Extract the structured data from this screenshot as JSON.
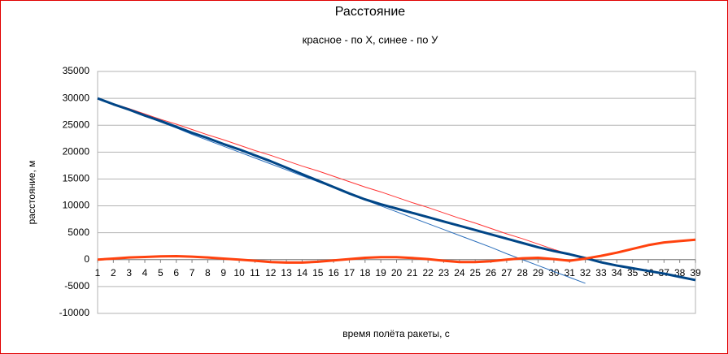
{
  "chart_data": {
    "type": "line",
    "title": "Расстояние",
    "subtitle": "красное - по Х,  синее - по У",
    "x_label": "время полёта ракеты, с",
    "y_label": "расстояние, м",
    "categories": [
      "1",
      "2",
      "3",
      "4",
      "5",
      "6",
      "7",
      "8",
      "9",
      "10",
      "11",
      "12",
      "13",
      "14",
      "15",
      "16",
      "17",
      "18",
      "19",
      "20",
      "21",
      "22",
      "23",
      "24",
      "25",
      "26",
      "27",
      "28",
      "29",
      "30",
      "31",
      "32",
      "33",
      "34",
      "35",
      "36",
      "37",
      "38",
      "39"
    ],
    "series": [
      {
        "color": "#ff3333",
        "line_width": 1,
        "values": [
          30000,
          29000,
          28100,
          27100,
          26100,
          25200,
          24200,
          23200,
          22300,
          21300,
          20300,
          19400,
          18400,
          17400,
          16500,
          15500,
          14500,
          13500,
          12600,
          11600,
          10600,
          9700,
          8700,
          7700,
          6800,
          5800,
          4800,
          3900,
          2900,
          1900,
          1000,
          0,
          null,
          null,
          null,
          null,
          null,
          null,
          null
        ]
      },
      {
        "color": "#2a6ebb",
        "line_width": 1,
        "values": [
          30000,
          28900,
          27800,
          26700,
          25600,
          24500,
          23300,
          22200,
          21100,
          20000,
          18900,
          17800,
          16700,
          15600,
          14500,
          13400,
          12200,
          11100,
          10000,
          8900,
          7800,
          6700,
          5600,
          4500,
          3400,
          2300,
          1100,
          0,
          -1100,
          -2200,
          -3300,
          -4400,
          null,
          null,
          null,
          null,
          null,
          null,
          null
        ]
      },
      {
        "color": "#004586",
        "line_width": 3,
        "values": [
          30000,
          28900,
          27900,
          26800,
          25800,
          24700,
          23600,
          22600,
          21500,
          20500,
          19400,
          18300,
          17100,
          15900,
          14700,
          13500,
          12300,
          11200,
          10300,
          9500,
          8700,
          7900,
          7100,
          6300,
          5500,
          4700,
          3900,
          3100,
          2300,
          1600,
          1000,
          300,
          -500,
          -1100,
          -1600,
          -2100,
          -2600,
          -3200,
          -3800
        ]
      },
      {
        "color": "#ff420e",
        "line_width": 3,
        "values": [
          0,
          200,
          400,
          500,
          600,
          650,
          550,
          400,
          200,
          0,
          -200,
          -450,
          -550,
          -550,
          -400,
          -150,
          100,
          350,
          450,
          450,
          300,
          100,
          -200,
          -450,
          -450,
          -300,
          0,
          250,
          350,
          100,
          -200,
          200,
          700,
          1300,
          2000,
          2700,
          3200,
          3450,
          3700
        ]
      }
    ],
    "ylim": [
      -10000,
      35000
    ],
    "yticks": [
      -10000,
      -5000,
      0,
      5000,
      10000,
      15000,
      20000,
      25000,
      30000,
      35000
    ],
    "grid": true
  }
}
